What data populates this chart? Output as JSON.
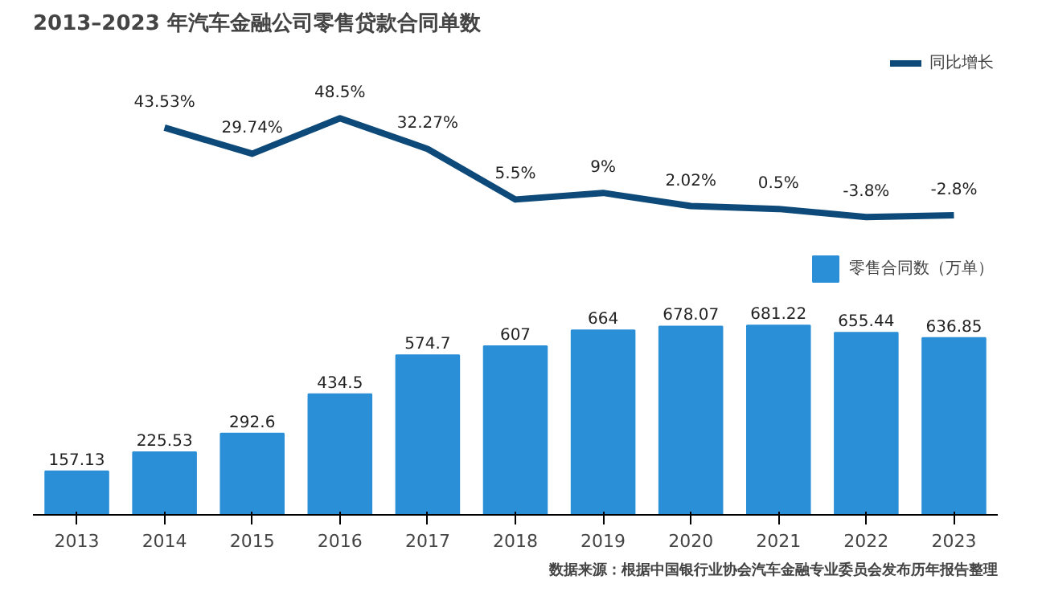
{
  "chart_data": [
    {
      "type": "line",
      "title": "2013–2023 年汽车金融公司零售贷款合同单数",
      "categories": [
        "2013",
        "2014",
        "2015",
        "2016",
        "2017",
        "2018",
        "2019",
        "2020",
        "2021",
        "2022",
        "2023"
      ],
      "tick_labels": false,
      "data_labels": true,
      "legend": "top right",
      "marker": "none",
      "line_style": "solid",
      "grid": false,
      "series": [
        {
          "name": "同比增长",
          "color": "#0d4a7a",
          "values": [
            null,
            43.53,
            29.74,
            48.5,
            32.27,
            5.5,
            9,
            2.02,
            0.5,
            -3.8,
            -2.8
          ],
          "value_labels": [
            null,
            "43.53%",
            "29.74%",
            "48.5%",
            "32.27%",
            "5.5%",
            "9%",
            "2.02%",
            "0.5%",
            "-3.8%",
            "-2.8%"
          ]
        }
      ]
    },
    {
      "type": "bar",
      "categories": [
        "2013",
        "2014",
        "2015",
        "2016",
        "2017",
        "2018",
        "2019",
        "2020",
        "2021",
        "2022",
        "2023"
      ],
      "data_labels": true,
      "legend": "top right",
      "grid": false,
      "series": [
        {
          "name": "零售合同数（万单）",
          "color": "#2a8fd6",
          "values": [
            157.13,
            225.53,
            292.6,
            434.5,
            574.7,
            607,
            664,
            678.07,
            681.22,
            655.44,
            636.85
          ]
        }
      ],
      "annotations": [
        "数据来源：根据中国银行业协会汽车金融专业委员会发布历年报告整理"
      ]
    }
  ]
}
